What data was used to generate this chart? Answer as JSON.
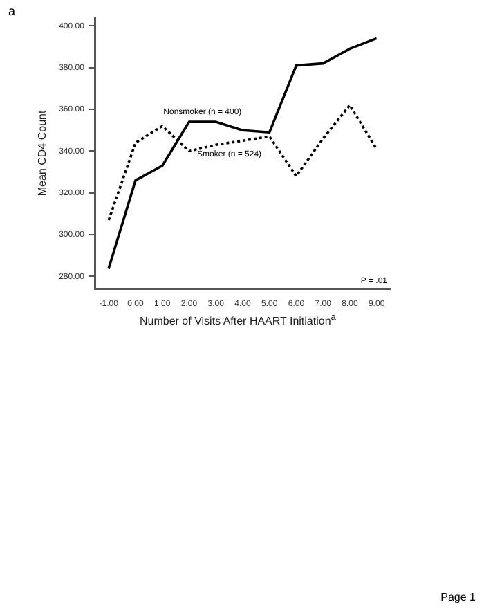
{
  "chart_data": {
    "type": "line",
    "xlabel": "Number of Visits After HAART Initiation$^{a}$",
    "ylabel": "Mean CD4 Count",
    "annotations": [
      "a",
      "P = .01",
      "Page 1"
    ],
    "x": [
      -1,
      0,
      1,
      2,
      3,
      4,
      5,
      6,
      7,
      8,
      9
    ],
    "xlim": [
      -1.5,
      9.5
    ],
    "xticks": [
      {
        "value": -1,
        "label": "-1.00"
      },
      {
        "value": 0,
        "label": "0.00"
      },
      {
        "value": 1,
        "label": "1.00"
      },
      {
        "value": 2,
        "label": "2.00"
      },
      {
        "value": 3,
        "label": "3.00"
      },
      {
        "value": 4,
        "label": "4.00"
      },
      {
        "value": 5,
        "label": "5.00"
      },
      {
        "value": 6,
        "label": "6.00"
      },
      {
        "value": 7,
        "label": "7.00"
      },
      {
        "value": 8,
        "label": "8.00"
      },
      {
        "value": 9,
        "label": "9.00"
      }
    ],
    "ylim": [
      274,
      404
    ],
    "yticks": [
      {
        "value": 280,
        "label": "280.00"
      },
      {
        "value": 300,
        "label": "300.00"
      },
      {
        "value": 320,
        "label": "320.00"
      },
      {
        "value": 340,
        "label": "340.00"
      },
      {
        "value": 360,
        "label": "360.00"
      },
      {
        "value": 380,
        "label": "380.00"
      },
      {
        "value": 400,
        "label": "400.00"
      }
    ],
    "grid": false,
    "legend": false,
    "marker": "none",
    "series": [
      {
        "name": "Nonsmoker (n = 400)",
        "color": "#000000",
        "line_style": "solid",
        "values": [
          284,
          326,
          333,
          354,
          354,
          350,
          349,
          381,
          382,
          389,
          394
        ]
      },
      {
        "name": "Smoker (n = 524)",
        "color": "#000000",
        "line_style": "dotted",
        "values": [
          307,
          344,
          352,
          340,
          343,
          345,
          347,
          328,
          346,
          362,
          341
        ]
      }
    ]
  }
}
